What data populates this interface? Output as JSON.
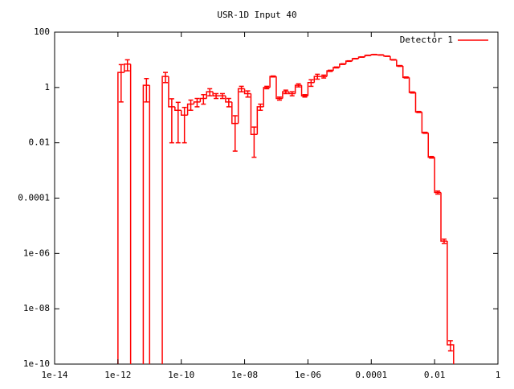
{
  "chart_data": {
    "type": "histogram",
    "title": "USR-1D Input 40",
    "xscale": "log",
    "yscale": "log",
    "legend": "top-right",
    "xlim": [
      1e-14,
      1
    ],
    "ylim": [
      1e-10,
      100
    ],
    "xticks": [
      {
        "value": 1e-14,
        "label": "1e-14"
      },
      {
        "value": 1e-12,
        "label": "1e-12"
      },
      {
        "value": 1e-10,
        "label": "1e-10"
      },
      {
        "value": 1e-08,
        "label": "1e-08"
      },
      {
        "value": 1e-06,
        "label": "1e-06"
      },
      {
        "value": 0.0001,
        "label": "0.0001"
      },
      0.01,
      1
    ],
    "yticks": [
      {
        "value": 1e-10,
        "label": "1e-10"
      },
      {
        "value": 1e-08,
        "label": "1e-08"
      },
      {
        "value": 1e-06,
        "label": "1e-06"
      },
      0.0001,
      0.01,
      1,
      100
    ],
    "bins": [
      1e-12,
      1.585e-12,
      2.512e-12,
      3.981e-12,
      6.31e-12,
      1e-11,
      1.585e-11,
      2.512e-11,
      3.981e-11,
      6.31e-11,
      1e-10,
      1.585e-10,
      2.512e-10,
      3.981e-10,
      6.31e-10,
      1e-09,
      1.585e-09,
      2.512e-09,
      3.981e-09,
      6.31e-09,
      1e-08,
      1.585e-08,
      2.512e-08,
      3.981e-08,
      6.31e-08,
      1e-07,
      1.585e-07,
      2.512e-07,
      3.981e-07,
      6.31e-07,
      1e-06,
      1.585e-06,
      2.512e-06,
      3.981e-06,
      6.31e-06,
      1e-05,
      1.585e-05,
      2.512e-05,
      3.981e-05,
      6.31e-05,
      0.0001,
      0.0001585,
      0.0002512,
      0.0003981,
      0.000631,
      0.001,
      0.001585,
      0.002512,
      0.003981,
      0.00631,
      0.01,
      0.01585,
      0.02512,
      0.03981
    ],
    "series": [
      {
        "name": "Detector 1",
        "color": "#ff0000",
        "values": [
          3.5,
          7,
          0,
          0,
          1.2,
          0,
          0,
          2.5,
          0.2,
          0.15,
          0.1,
          0.25,
          0.3,
          0.4,
          0.7,
          0.5,
          0.5,
          0.3,
          0.05,
          0.9,
          0.6,
          0.02,
          0.2,
          1.0,
          2.5,
          0.4,
          0.7,
          0.6,
          1.2,
          0.5,
          1.5,
          2.5,
          2.5,
          4,
          5.3,
          7,
          9,
          11,
          12.6,
          14.5,
          15.5,
          15,
          13.5,
          10,
          6,
          2.3,
          0.66,
          0.13,
          0.023,
          0.003,
          0.00016,
          2.8e-06,
          5e-10
        ],
        "errors": [
          3.2,
          3,
          0,
          0,
          0.9,
          0,
          0,
          1,
          0.19,
          0.14,
          0.09,
          0.1,
          0.1,
          0.15,
          0.2,
          0.1,
          0.1,
          0.1,
          0.045,
          0.2,
          0.15,
          0.017,
          0.05,
          0.1,
          0.1,
          0.05,
          0.1,
          0.1,
          0.15,
          0.05,
          0.4,
          0.5,
          0.3,
          0.2,
          0.2,
          0.2,
          0.2,
          0.2,
          0.2,
          0.2,
          0.2,
          0.2,
          0.2,
          0.2,
          0.2,
          0.1,
          0.03,
          0.006,
          0.001,
          0.0002,
          2e-05,
          5e-07,
          2e-10
        ]
      }
    ]
  }
}
